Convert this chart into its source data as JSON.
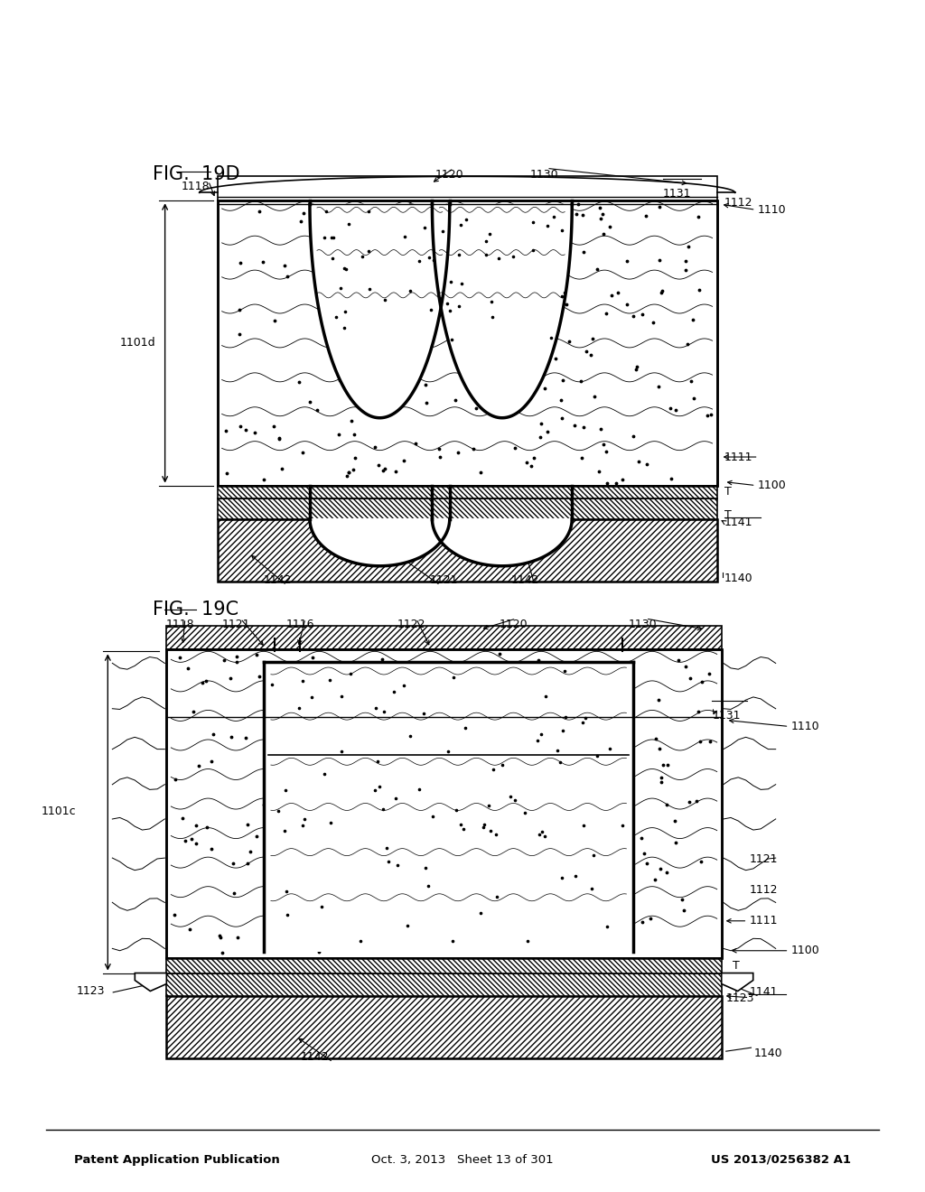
{
  "header_left": "Patent Application Publication",
  "header_mid": "Oct. 3, 2013   Sheet 13 of 301",
  "header_right": "US 2013/0256382 A1",
  "fig_c_label": "FIG.  19C",
  "fig_d_label": "FIG.  19D",
  "bg_color": "#ffffff"
}
